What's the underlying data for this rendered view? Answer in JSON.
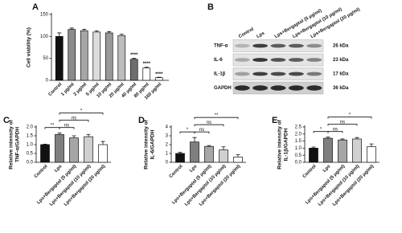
{
  "chart_data": [
    {
      "type": "bar",
      "panel_label": "A",
      "ylabel": [
        "Cell viability (%)"
      ],
      "categories": [
        "Control",
        "1 μg/ml",
        "2 μg/ml",
        "5 μg/ml",
        "10 μg/ml",
        "20 μg/ml",
        "40 μg/ml",
        "80 μg/ml",
        "160 μg/ml"
      ],
      "values": [
        100,
        116,
        113,
        110,
        108,
        102,
        48,
        28,
        6
      ],
      "errors": [
        8,
        3,
        3,
        3,
        3,
        3,
        2,
        2,
        1
      ],
      "colors": [
        "#111111",
        "#8c8c8c",
        "#a6a6a6",
        "#dcdcdc",
        "#999999",
        "#bdbdbd",
        "#6e6e6e",
        "#ffffff",
        "#ffffff"
      ],
      "ylim": [
        0,
        150
      ],
      "yticks": [
        0,
        50,
        100,
        150
      ],
      "annotations": [
        {
          "label": "****",
          "category": "40 μg/ml"
        },
        {
          "label": "****",
          "category": "80 μg/ml"
        },
        {
          "label": "****",
          "category": "160 μg/ml"
        }
      ]
    },
    {
      "type": "bar",
      "panel_label": "C",
      "ylabel": [
        "Relative intensity of",
        "TNF-α/GAPDH"
      ],
      "categories": [
        "Control",
        "Lps",
        "Lps+Bergaptol (5 μg/ml)",
        "Lps+Bergaptol (10 μg/ml)",
        "Lps+Bergaptol (20 μg/ml)"
      ],
      "values": [
        1.0,
        1.57,
        1.38,
        1.45,
        1.0
      ],
      "errors": [
        0.03,
        0.08,
        0.12,
        0.13,
        0.18
      ],
      "colors": [
        "#111111",
        "#7f7f7f",
        "#a6a6a6",
        "#d0d0d0",
        "#ffffff"
      ],
      "ylim": [
        0,
        2
      ],
      "yticks": [
        {
          "value": 0,
          "label": "0.0"
        },
        {
          "value": 0.5,
          "label": "0.5"
        },
        {
          "value": 1,
          "label": "1.0"
        },
        {
          "value": 1.5,
          "label": "1.5"
        },
        {
          "value": 2,
          "label": "2.0"
        }
      ],
      "brackets": [
        {
          "label": "**",
          "between": [
            "Control",
            "Lps"
          ]
        },
        {
          "label": "ns",
          "between": [
            "Lps",
            "Lps+Bergaptol (5 μg/ml)"
          ]
        },
        {
          "label": "ns",
          "between": [
            "Lps",
            "Lps+Bergaptol (10 μg/ml)"
          ]
        },
        {
          "label": "*",
          "between": [
            "Lps",
            "Lps+Bergaptol (20 μg/ml)"
          ]
        }
      ]
    },
    {
      "type": "bar",
      "panel_label": "D",
      "ylabel": [
        "Relative intensity of",
        "IL-6/GAPDH"
      ],
      "categories": [
        "Control",
        "Lps",
        "Lps+Bergaptol (5 μg/ml)",
        "Lps+Bergaptol (10 μg/ml)",
        "Lps+Bergaptol (20 μg/ml)"
      ],
      "values": [
        1.0,
        2.3,
        1.8,
        1.4,
        0.6
      ],
      "errors": [
        0.12,
        0.5,
        0.1,
        0.35,
        0.25
      ],
      "colors": [
        "#111111",
        "#7f7f7f",
        "#a6a6a6",
        "#d0d0d0",
        "#ffffff"
      ],
      "ylim": [
        0,
        4
      ],
      "yticks": [
        0,
        1,
        2,
        3,
        4
      ],
      "brackets": [
        {
          "label": "*",
          "between": [
            "Control",
            "Lps"
          ]
        },
        {
          "label": "ns",
          "between": [
            "Lps",
            "Lps+Bergaptol (5 μg/ml)"
          ]
        },
        {
          "label": "ns",
          "between": [
            "Lps",
            "Lps+Bergaptol (10 μg/ml)"
          ]
        },
        {
          "label": "**",
          "between": [
            "Lps",
            "Lps+Bergaptol (20 μg/ml)"
          ]
        }
      ]
    },
    {
      "type": "bar",
      "panel_label": "E",
      "ylabel": [
        "Relative intensity of",
        "IL-1β/GAPDH"
      ],
      "categories": [
        "Control",
        "Lps",
        "Lps+Bergaptol (5 μg/ml)",
        "Lps+Bergaptol (10 μg/ml)",
        "Lps+Bergaptol (20 μg/ml)"
      ],
      "values": [
        1.0,
        1.7,
        1.58,
        1.65,
        1.1
      ],
      "errors": [
        0.08,
        0.08,
        0.07,
        0.1,
        0.2
      ],
      "colors": [
        "#111111",
        "#7f7f7f",
        "#a6a6a6",
        "#d0d0d0",
        "#ffffff"
      ],
      "ylim": [
        0,
        2.5
      ],
      "yticks": [
        {
          "value": 0,
          "label": "0.0"
        },
        {
          "value": 0.5,
          "label": "0.5"
        },
        {
          "value": 1,
          "label": "1.0"
        },
        {
          "value": 1.5,
          "label": "1.5"
        },
        {
          "value": 2,
          "label": "2.0"
        },
        {
          "value": 2.5,
          "label": "2.5"
        }
      ],
      "brackets": [
        {
          "label": "*",
          "between": [
            "Control",
            "Lps"
          ]
        },
        {
          "label": "ns",
          "between": [
            "Lps",
            "Lps+Bergaptol (5 μg/ml)"
          ]
        },
        {
          "label": "ns",
          "between": [
            "Lps",
            "Lps+Bergaptol (10 μg/ml)"
          ]
        },
        {
          "label": "*",
          "between": [
            "Lps",
            "Lps+Bergaptol (20 μg/ml)"
          ]
        }
      ]
    }
  ],
  "blot": {
    "panel_label": "B",
    "lanes": [
      "Control",
      "Lps",
      "Lps+Bergaptol (5 μg/ml)",
      "Lps+Bergaptol (10 μg/ml)",
      "Lps+Bergaptol (20 μg/ml)"
    ],
    "rows": [
      {
        "name": "TNF-α",
        "size": "26 kDa"
      },
      {
        "name": "IL-6",
        "size": "23 kDa"
      },
      {
        "name": "IL-1β",
        "size": "17 kDa"
      },
      {
        "name": "GAPDH",
        "size": "36 kDa"
      }
    ]
  }
}
